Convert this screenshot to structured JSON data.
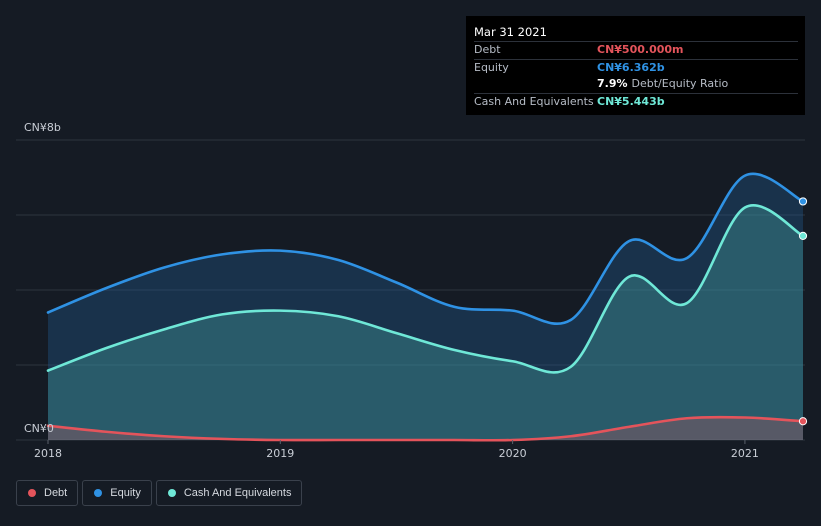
{
  "tooltip": {
    "date": "Mar 31 2021",
    "rows": [
      {
        "label": "Debt",
        "value": "CN¥500.000m",
        "color": "#e4545b"
      },
      {
        "label": "Equity",
        "value": "CN¥6.362b",
        "color": "#2f92e4"
      },
      {
        "label": "",
        "ratio_value": "7.9%",
        "ratio_label": "Debt/Equity Ratio"
      },
      {
        "label": "Cash And Equivalents",
        "value": "CN¥5.443b",
        "color": "#6fe8d7"
      }
    ]
  },
  "legend": [
    {
      "label": "Debt",
      "color": "#e4545b"
    },
    {
      "label": "Equity",
      "color": "#2f92e4"
    },
    {
      "label": "Cash And Equivalents",
      "color": "#6fe8d7"
    }
  ],
  "chart_data": {
    "type": "area",
    "y_unit": "CN¥ billions",
    "ylim": [
      0,
      8
    ],
    "y_tick_labels": [
      {
        "value": 8,
        "label": "CN¥8b"
      },
      {
        "value": 0,
        "label": "CN¥0"
      }
    ],
    "x_tick_labels": [
      "2018",
      "2019",
      "2020",
      "2021"
    ],
    "xlim": [
      2018.0,
      2021.25
    ],
    "grid": true,
    "legend_position": "bottom-left",
    "series": [
      {
        "name": "Equity",
        "color": "#2f92e4",
        "x": [
          2018.0,
          2018.25,
          2018.5,
          2018.75,
          2019.0,
          2019.25,
          2019.5,
          2019.75,
          2020.0,
          2020.25,
          2020.5,
          2020.75,
          2021.0,
          2021.25
        ],
        "y": [
          3.4,
          4.05,
          4.6,
          4.95,
          5.05,
          4.8,
          4.2,
          3.55,
          3.45,
          3.2,
          5.3,
          4.85,
          7.05,
          6.362
        ]
      },
      {
        "name": "Cash And Equivalents",
        "color": "#6fe8d7",
        "x": [
          2018.0,
          2018.25,
          2018.5,
          2018.75,
          2019.0,
          2019.25,
          2019.5,
          2019.75,
          2020.0,
          2020.25,
          2020.5,
          2020.75,
          2021.0,
          2021.25
        ],
        "y": [
          1.85,
          2.45,
          2.95,
          3.35,
          3.45,
          3.3,
          2.85,
          2.4,
          2.1,
          1.95,
          4.35,
          3.65,
          6.2,
          5.443
        ]
      },
      {
        "name": "Debt",
        "color": "#e4545b",
        "x": [
          2018.0,
          2018.25,
          2018.5,
          2018.75,
          2019.0,
          2019.25,
          2019.5,
          2019.75,
          2020.0,
          2020.25,
          2020.5,
          2020.75,
          2021.0,
          2021.25
        ],
        "y": [
          0.38,
          0.22,
          0.1,
          0.03,
          0.0,
          0.0,
          0.0,
          0.0,
          0.0,
          0.1,
          0.35,
          0.58,
          0.6,
          0.5
        ]
      }
    ]
  }
}
